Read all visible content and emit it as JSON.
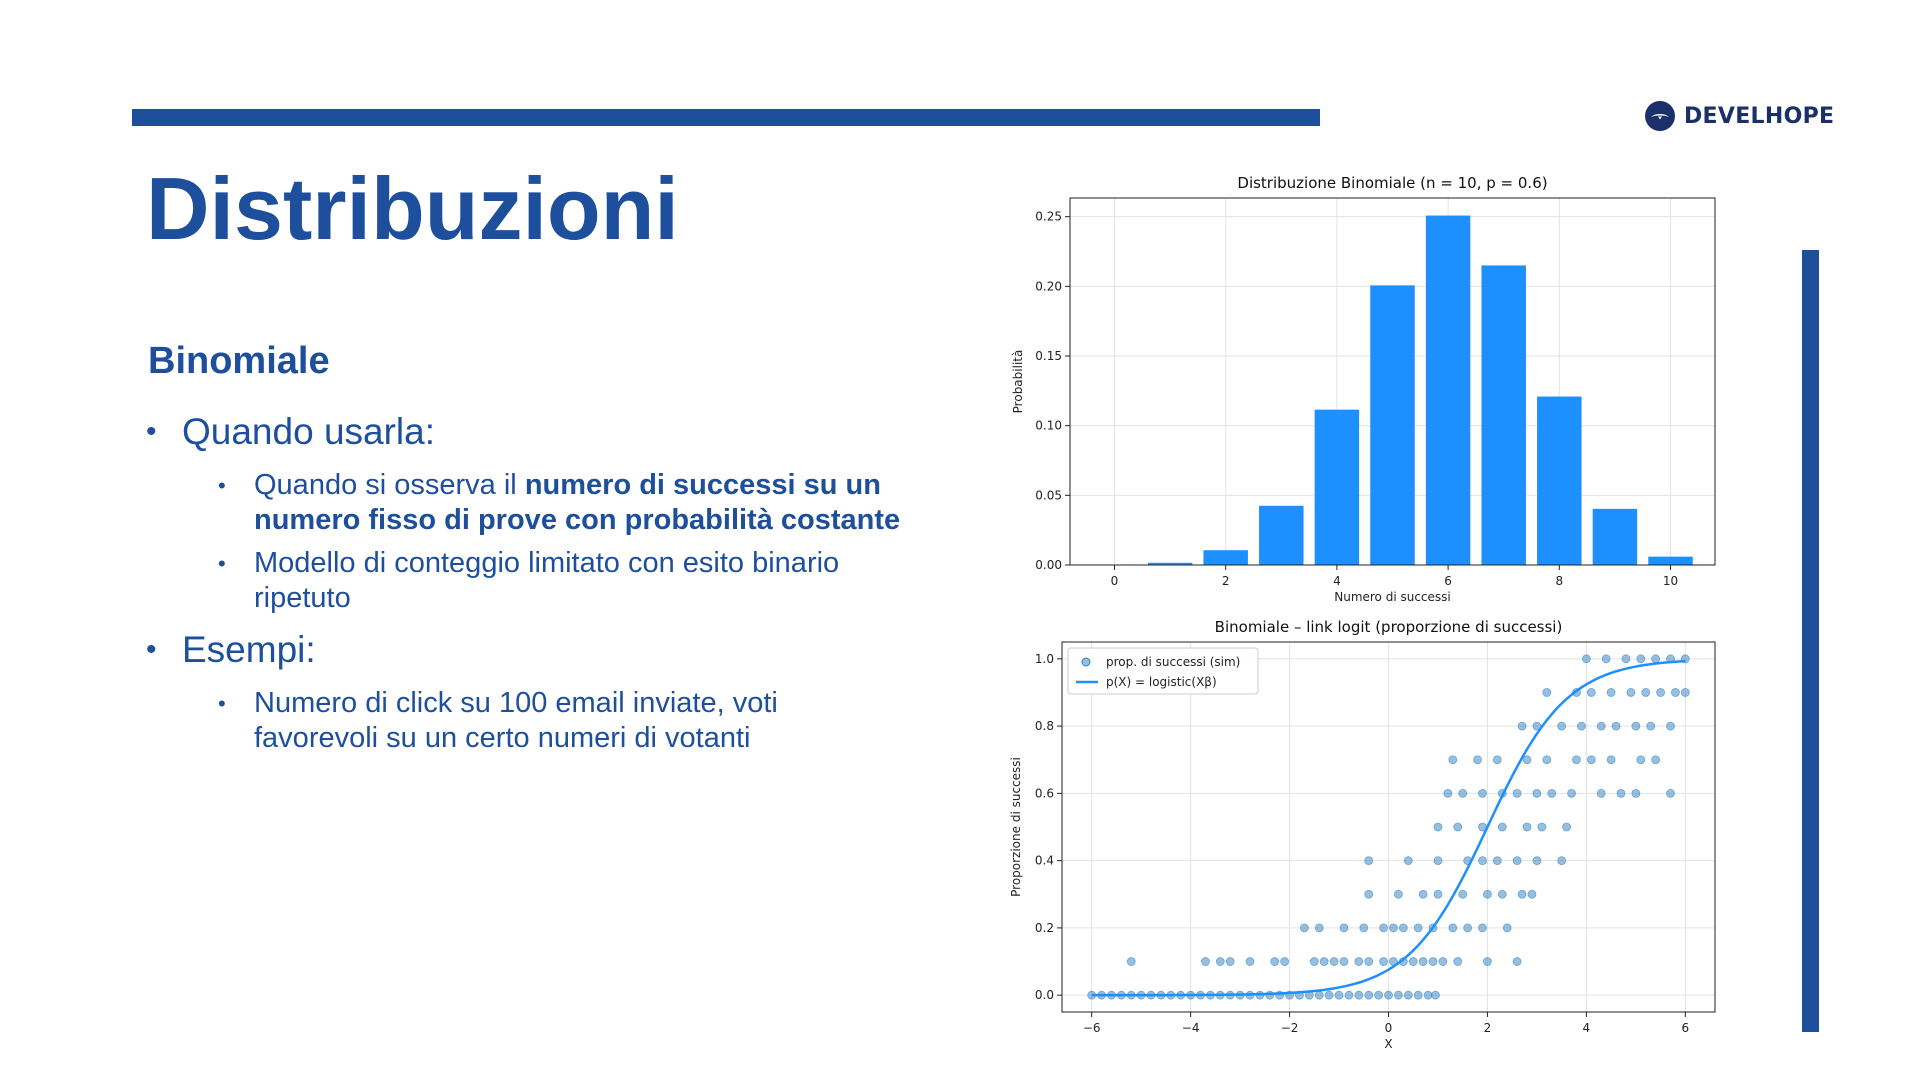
{
  "slide": {
    "title": "Distribuzioni",
    "subtitle": "Binomiale",
    "bullets": [
      {
        "text": "Quando usarla:",
        "sub": [
          {
            "parts": [
              {
                "text": "Quando si osserva il ",
                "bold": false
              },
              {
                "text": "numero di successi su un numero fisso di prove con probabilità costante",
                "bold": true
              }
            ]
          },
          {
            "parts": [
              {
                "text": "Modello di conteggio limitato con esito binario ripetuto",
                "bold": false
              }
            ]
          }
        ]
      },
      {
        "text": "Esempi:",
        "sub": [
          {
            "parts": [
              {
                "text": "Numero di click su 100 email inviate, voti favorevoli su un certo numeri di votanti",
                "bold": false
              }
            ]
          }
        ]
      }
    ]
  },
  "logo": {
    "text": "DEVELHOPE",
    "icon": "develhope-logo-icon",
    "color": "#1b2f6b"
  },
  "colors": {
    "primary": "#1d4f9c",
    "bar": "#1e8fff",
    "scatter": "#2f7fc1",
    "curve": "#1e8fff"
  },
  "chart_data": [
    {
      "type": "bar",
      "title": "Distribuzione Binomiale (n = 10, p = 0.6)",
      "xlabel": "Numero di successi",
      "ylabel": "Probabilità",
      "categories": [
        0,
        1,
        2,
        3,
        4,
        5,
        6,
        7,
        8,
        9,
        10
      ],
      "values": [
        0.0001,
        0.0016,
        0.0106,
        0.0425,
        0.1115,
        0.2007,
        0.2508,
        0.215,
        0.1209,
        0.0403,
        0.006
      ],
      "xticks": [
        0,
        2,
        4,
        6,
        8,
        10
      ],
      "yticks": [
        0.0,
        0.05,
        0.1,
        0.15,
        0.2,
        0.25
      ],
      "xlim": [
        -0.8,
        10.8
      ],
      "ylim": [
        0,
        0.2634
      ],
      "grid": true
    },
    {
      "type": "scatter",
      "title": "Binomiale – link logit (proporzione di successi)",
      "xlabel": "X",
      "ylabel": "Proporzione di successi",
      "xticks": [
        -6,
        -4,
        -2,
        0,
        2,
        4,
        6
      ],
      "yticks": [
        0.0,
        0.2,
        0.4,
        0.6,
        0.8,
        1.0
      ],
      "xlim": [
        -6.6,
        6.6
      ],
      "ylim": [
        -0.05,
        1.05
      ],
      "grid": true,
      "legend_position": "top-left",
      "series": [
        {
          "name": "prop. di successi (sim)",
          "type": "scatter",
          "points": [
            [
              -6.0,
              0
            ],
            [
              -5.8,
              0
            ],
            [
              -5.6,
              0
            ],
            [
              -5.4,
              0
            ],
            [
              -5.2,
              0
            ],
            [
              -5.0,
              0
            ],
            [
              -4.8,
              0
            ],
            [
              -4.6,
              0
            ],
            [
              -4.4,
              0
            ],
            [
              -4.2,
              0
            ],
            [
              -4.0,
              0
            ],
            [
              -3.8,
              0
            ],
            [
              -3.6,
              0
            ],
            [
              -3.4,
              0
            ],
            [
              -3.2,
              0
            ],
            [
              -3.0,
              0
            ],
            [
              -2.8,
              0
            ],
            [
              -2.6,
              0
            ],
            [
              -2.4,
              0
            ],
            [
              -2.2,
              0
            ],
            [
              -2.0,
              0
            ],
            [
              -1.8,
              0
            ],
            [
              -1.6,
              0
            ],
            [
              -1.4,
              0
            ],
            [
              -1.2,
              0
            ],
            [
              -1.0,
              0
            ],
            [
              -0.8,
              0
            ],
            [
              -0.6,
              0
            ],
            [
              -0.4,
              0
            ],
            [
              -0.2,
              0
            ],
            [
              0.0,
              0
            ],
            [
              0.2,
              0
            ],
            [
              0.4,
              0
            ],
            [
              0.6,
              0
            ],
            [
              0.8,
              0
            ],
            [
              0.95,
              0
            ],
            [
              -5.2,
              0.1
            ],
            [
              -3.7,
              0.1
            ],
            [
              -3.4,
              0.1
            ],
            [
              -3.2,
              0.1
            ],
            [
              -2.8,
              0.1
            ],
            [
              -2.3,
              0.1
            ],
            [
              -2.1,
              0.1
            ],
            [
              -1.5,
              0.1
            ],
            [
              -1.3,
              0.1
            ],
            [
              -1.1,
              0.1
            ],
            [
              -0.9,
              0.1
            ],
            [
              -0.6,
              0.1
            ],
            [
              -0.4,
              0.1
            ],
            [
              -0.1,
              0.1
            ],
            [
              0.1,
              0.1
            ],
            [
              0.3,
              0.1
            ],
            [
              0.5,
              0.1
            ],
            [
              0.7,
              0.1
            ],
            [
              0.9,
              0.1
            ],
            [
              1.1,
              0.1
            ],
            [
              1.4,
              0.1
            ],
            [
              2.0,
              0.1
            ],
            [
              2.6,
              0.1
            ],
            [
              -1.7,
              0.2
            ],
            [
              -1.4,
              0.2
            ],
            [
              -0.9,
              0.2
            ],
            [
              -0.5,
              0.2
            ],
            [
              -0.1,
              0.2
            ],
            [
              0.1,
              0.2
            ],
            [
              0.3,
              0.2
            ],
            [
              0.6,
              0.2
            ],
            [
              0.9,
              0.2
            ],
            [
              1.3,
              0.2
            ],
            [
              1.6,
              0.2
            ],
            [
              1.9,
              0.2
            ],
            [
              2.4,
              0.2
            ],
            [
              -0.4,
              0.3
            ],
            [
              0.2,
              0.3
            ],
            [
              0.7,
              0.3
            ],
            [
              1.0,
              0.3
            ],
            [
              1.5,
              0.3
            ],
            [
              2.0,
              0.3
            ],
            [
              2.3,
              0.3
            ],
            [
              2.7,
              0.3
            ],
            [
              2.9,
              0.3
            ],
            [
              -0.4,
              0.4
            ],
            [
              0.4,
              0.4
            ],
            [
              1.0,
              0.4
            ],
            [
              1.6,
              0.4
            ],
            [
              1.9,
              0.4
            ],
            [
              2.2,
              0.4
            ],
            [
              2.6,
              0.4
            ],
            [
              3.0,
              0.4
            ],
            [
              3.5,
              0.4
            ],
            [
              1.0,
              0.5
            ],
            [
              1.4,
              0.5
            ],
            [
              1.9,
              0.5
            ],
            [
              2.3,
              0.5
            ],
            [
              2.8,
              0.5
            ],
            [
              3.1,
              0.5
            ],
            [
              3.6,
              0.5
            ],
            [
              1.2,
              0.6
            ],
            [
              1.5,
              0.6
            ],
            [
              1.9,
              0.6
            ],
            [
              2.3,
              0.6
            ],
            [
              2.6,
              0.6
            ],
            [
              3.0,
              0.6
            ],
            [
              3.3,
              0.6
            ],
            [
              3.7,
              0.6
            ],
            [
              4.3,
              0.6
            ],
            [
              4.7,
              0.6
            ],
            [
              5.0,
              0.6
            ],
            [
              5.7,
              0.6
            ],
            [
              1.3,
              0.7
            ],
            [
              1.8,
              0.7
            ],
            [
              2.2,
              0.7
            ],
            [
              2.8,
              0.7
            ],
            [
              3.2,
              0.7
            ],
            [
              3.8,
              0.7
            ],
            [
              4.1,
              0.7
            ],
            [
              4.5,
              0.7
            ],
            [
              5.1,
              0.7
            ],
            [
              5.4,
              0.7
            ],
            [
              2.7,
              0.8
            ],
            [
              3.0,
              0.8
            ],
            [
              3.5,
              0.8
            ],
            [
              3.9,
              0.8
            ],
            [
              4.3,
              0.8
            ],
            [
              4.6,
              0.8
            ],
            [
              5.0,
              0.8
            ],
            [
              5.3,
              0.8
            ],
            [
              5.7,
              0.8
            ],
            [
              3.2,
              0.9
            ],
            [
              3.8,
              0.9
            ],
            [
              4.1,
              0.9
            ],
            [
              4.5,
              0.9
            ],
            [
              4.9,
              0.9
            ],
            [
              5.2,
              0.9
            ],
            [
              5.5,
              0.9
            ],
            [
              5.8,
              0.9
            ],
            [
              6.0,
              0.9
            ],
            [
              4.0,
              1.0
            ],
            [
              4.4,
              1.0
            ],
            [
              4.8,
              1.0
            ],
            [
              5.1,
              1.0
            ],
            [
              5.4,
              1.0
            ],
            [
              5.7,
              1.0
            ],
            [
              6.0,
              1.0
            ]
          ]
        },
        {
          "name": "p(X) = logistic(Xβ)",
          "type": "line",
          "intercept": -2.5,
          "slope": 1.25,
          "xrange": [
            -6,
            6
          ]
        }
      ]
    }
  ]
}
